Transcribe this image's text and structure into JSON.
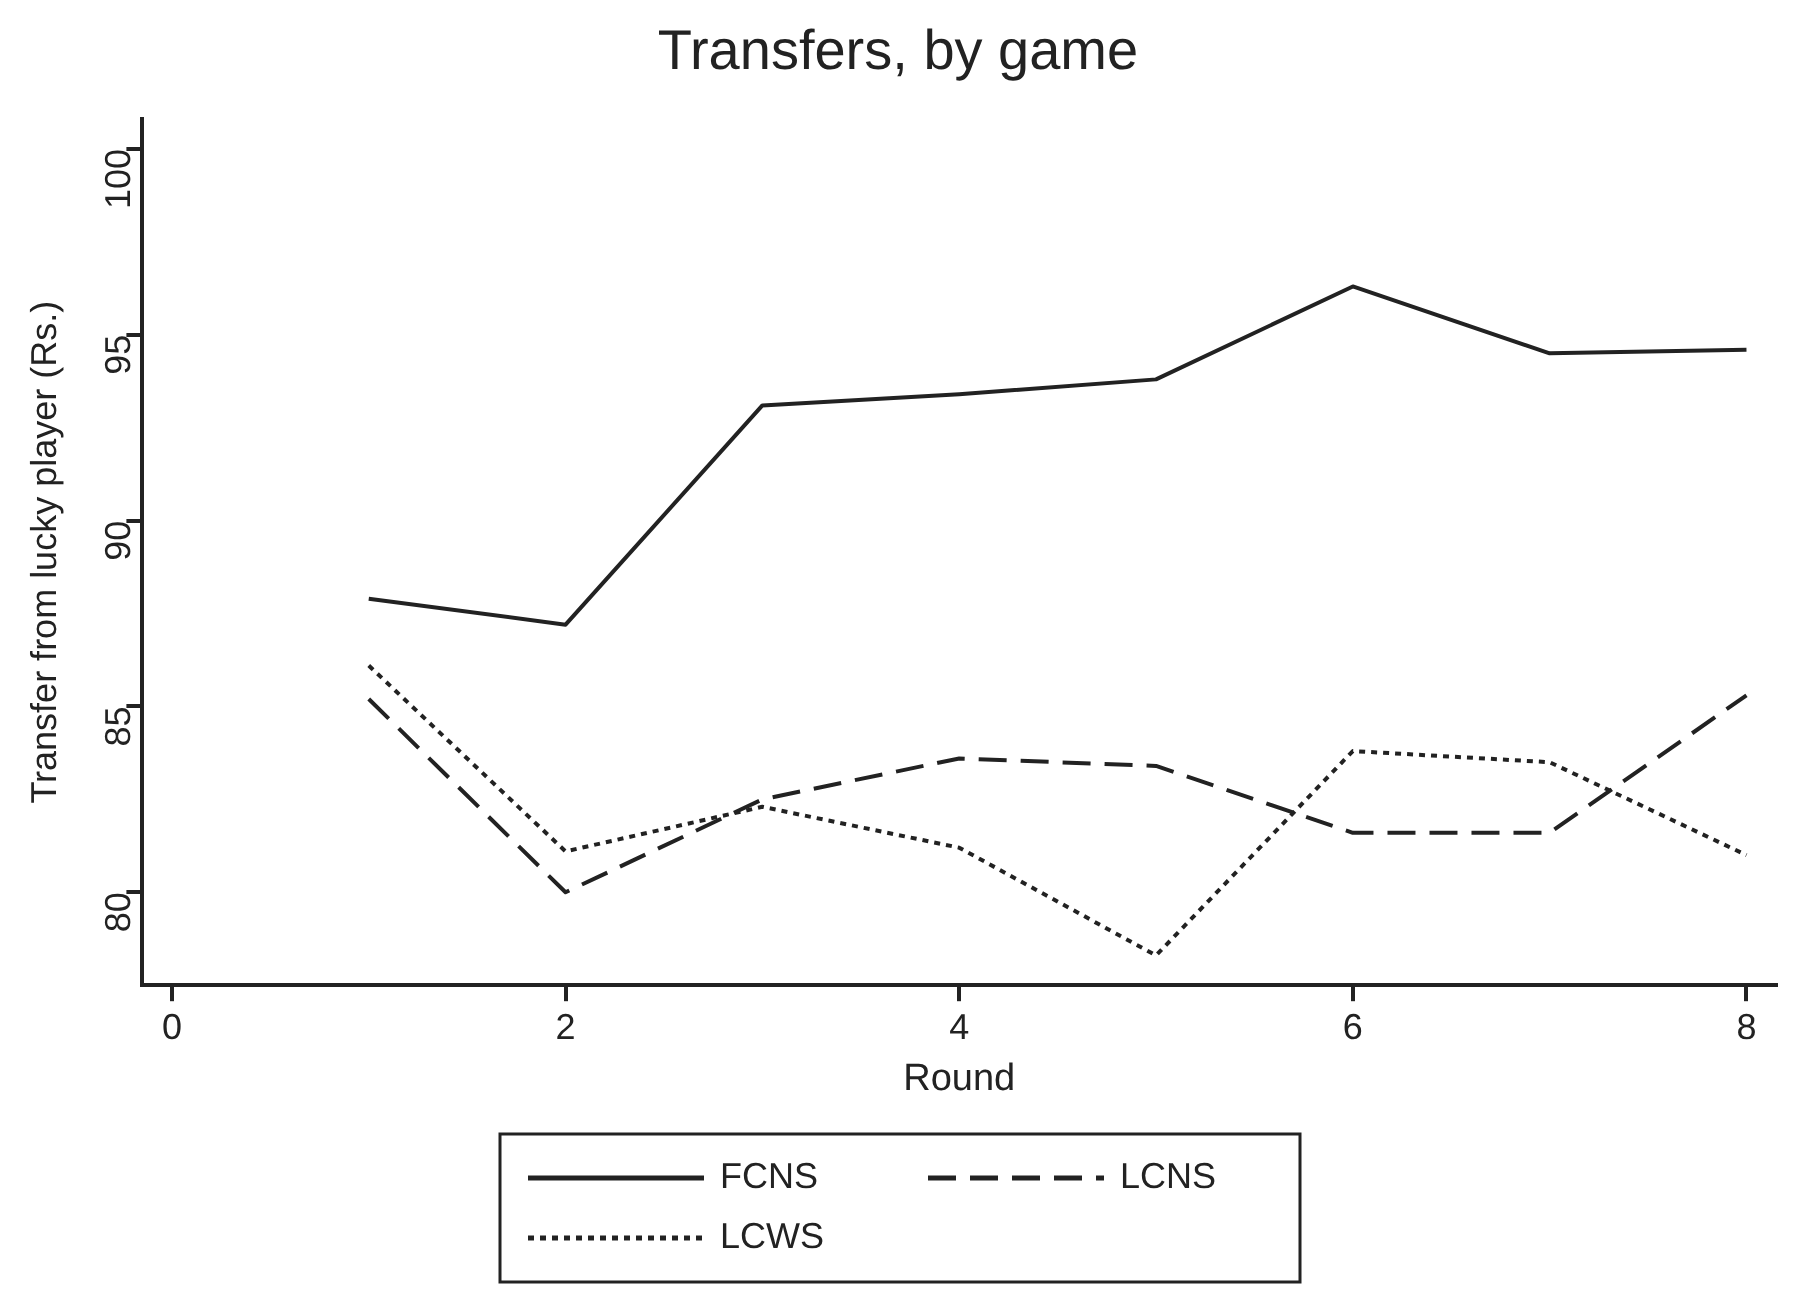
{
  "chart_data": {
    "type": "line",
    "title": "Transfers, by game",
    "xlabel": "Round",
    "ylabel": "Transfer from lucky player (Rs.)",
    "x": [
      1,
      2,
      3,
      4,
      5,
      6,
      7,
      8
    ],
    "xlim": [
      -0.15,
      8.15
    ],
    "xticks": [
      0,
      2,
      4,
      6,
      8
    ],
    "ylim": [
      77.5,
      100.8
    ],
    "yticks": [
      80,
      85,
      90,
      95,
      100
    ],
    "grid": false,
    "legend": "bottom",
    "marker": "none",
    "series": [
      {
        "name": "FCNS",
        "color": "#222222",
        "line_style": "solid",
        "values": [
          87.9,
          87.2,
          93.1,
          93.4,
          93.8,
          96.3,
          94.5,
          94.6
        ]
      },
      {
        "name": "LCNS",
        "color": "#222222",
        "line_style": "dashed",
        "values": [
          85.2,
          80.0,
          82.5,
          83.6,
          83.4,
          81.6,
          81.6,
          85.3
        ]
      },
      {
        "name": "LCWS",
        "color": "#222222",
        "line_style": "dotted",
        "values": [
          86.1,
          81.1,
          82.3,
          81.2,
          78.3,
          83.8,
          83.5,
          81.0
        ]
      }
    ]
  }
}
